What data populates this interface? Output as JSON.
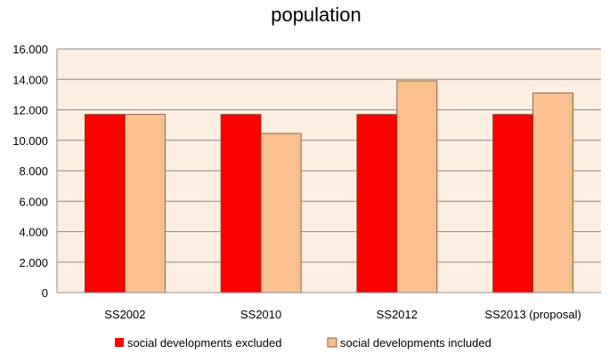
{
  "chart_data": {
    "type": "bar",
    "title": "population",
    "xlabel": "",
    "ylabel": "",
    "categories": [
      "SS2002",
      "SS2010",
      "SS2012",
      "SS2013 (proposal)"
    ],
    "series": [
      {
        "name": "social developments excluded",
        "values": [
          11700,
          11700,
          11700,
          11700
        ],
        "color": "#ff0000"
      },
      {
        "name": "social developments included",
        "values": [
          11700,
          10450,
          13900,
          13100
        ],
        "color": "#fac090"
      }
    ],
    "ylim": [
      0,
      16000
    ],
    "y_ticks": [
      0,
      2000,
      4000,
      6000,
      8000,
      10000,
      12000,
      14000,
      16000
    ],
    "y_tick_labels": [
      "0",
      "2.000",
      "4.000",
      "6.000",
      "8.000",
      "10.000",
      "12.000",
      "14.000",
      "16.000"
    ],
    "grid": true,
    "legend_position": "bottom",
    "plot_background": "#fdeee2"
  }
}
